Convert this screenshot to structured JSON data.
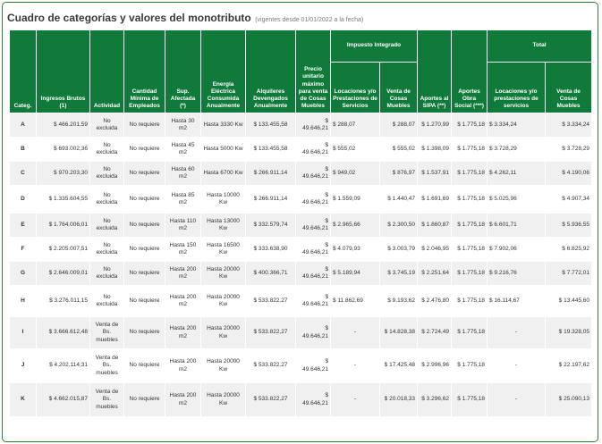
{
  "title": "Cuadro de categorías y valores del monotributo",
  "subtitle": "(vigentes desde 01/01/2022 a la fecha)",
  "headers": {
    "categ": "Categ.",
    "ingresos": "Ingresos Brutos (1)",
    "actividad": "Actividad",
    "empleados": "Cantidad Mínima de Empleados",
    "superficie": "Sup. Afectada (*)",
    "energia": "Energía Eléctrica Consumida Anualmente",
    "alquileres": "Alquileres Devengados Anualmente",
    "precio": "Precio unitario máximo para venta de Cosas Muebles",
    "impuesto_group": "Impuesto Integrado",
    "imp_servicios": "Locaciones y/o Prestaciones de Servicios",
    "imp_muebles": "Venta de Cosas Muebles",
    "sipa": "Aportes al SIPA (**)",
    "obra_social": "Aportes Obra Social (***)",
    "total_group": "Total",
    "tot_servicios": "Locaciones y/o prestaciones de servicios",
    "tot_muebles": "Venta de Cosas Muebles"
  },
  "rows": [
    {
      "cat": "A",
      "ingresos": "$ 466.201,59",
      "actividad": "No excluida",
      "empleados": "No requiere",
      "superficie": "Hasta 30 m2",
      "energia": "Hasta 3330 Kw",
      "alquileres": "$ 133.455,58",
      "precio": "$ 49.646,21",
      "imp_serv": "$ 288,07",
      "imp_mueb": "$ 288,07",
      "sipa": "$ 1.270,99",
      "obra": "$ 1.775,18",
      "tot_serv": "$ 3.334,24",
      "tot_mueb": "$ 3.334,24"
    },
    {
      "cat": "B",
      "ingresos": "$ 693.002,36",
      "actividad": "No excluida",
      "empleados": "No requiere",
      "superficie": "Hasta 45 m2",
      "energia": "Hasta 5000 Kw",
      "alquileres": "$ 133.455,58",
      "precio": "$ 49.646,21",
      "imp_serv": "$ 555,02",
      "imp_mueb": "$ 555,02",
      "sipa": "$ 1.398,09",
      "obra": "$ 1.775,18",
      "tot_serv": "$ 3.728,29",
      "tot_mueb": "$ 3.728,29"
    },
    {
      "cat": "C",
      "ingresos": "$ 970.203,30",
      "actividad": "No excluida",
      "empleados": "No requiere",
      "superficie": "Hasta 60 m2",
      "energia": "Hasta 6700 Kw",
      "alquileres": "$ 266.911,14",
      "precio": "$ 49.646,21",
      "imp_serv": "$ 949,02",
      "imp_mueb": "$ 876,97",
      "sipa": "$ 1.537,91",
      "obra": "$ 1.775,18",
      "tot_serv": "$ 4.262,11",
      "tot_mueb": "$ 4.190,06"
    },
    {
      "cat": "D",
      "ingresos": "$ 1.335.604,55",
      "actividad": "No excluida",
      "empleados": "No requiere",
      "superficie": "Hasta 85 m2",
      "energia": "Hasta 10000 Kw",
      "alquileres": "$ 266.911,14",
      "precio": "$ 49.646,21",
      "imp_serv": "$ 1.559,09",
      "imp_mueb": "$ 1.440,47",
      "sipa": "$ 1.691,69",
      "obra": "$ 1.775,18",
      "tot_serv": "$ 5.025,96",
      "tot_mueb": "$ 4.907,34"
    },
    {
      "cat": "E",
      "ingresos": "$ 1.764.006,01",
      "actividad": "No excluida",
      "empleados": "No requiere",
      "superficie": "Hasta 110 m2",
      "energia": "Hasta 13000 Kw",
      "alquileres": "$ 332.579,74",
      "precio": "$ 49.646,21",
      "imp_serv": "$ 2.965,66",
      "imp_mueb": "$ 2.300,50",
      "sipa": "$ 1.860,87",
      "obra": "$ 1.775,18",
      "tot_serv": "$ 6.601,71",
      "tot_mueb": "$ 5.936,55"
    },
    {
      "cat": "F",
      "ingresos": "$ 2.205.007,51",
      "actividad": "No excluida",
      "empleados": "No requiere",
      "superficie": "Hasta 150 m2",
      "energia": "Hasta 16500 Kw",
      "alquileres": "$ 333.638,90",
      "precio": "$ 49.646,21",
      "imp_serv": "$ 4.079,93",
      "imp_mueb": "$ 3.003,79",
      "sipa": "$ 2.046,95",
      "obra": "$ 1.775,18",
      "tot_serv": "$ 7.902,06",
      "tot_mueb": "$ 6.825,92"
    },
    {
      "cat": "G",
      "ingresos": "$ 2.646.009,01",
      "actividad": "No excluida",
      "empleados": "No requiere",
      "superficie": "Hasta 200 m2",
      "energia": "Hasta 20000 Kw",
      "alquileres": "$ 400.366,71",
      "precio": "$ 49.646,21",
      "imp_serv": "$ 5.189,94",
      "imp_mueb": "$ 3.745,19",
      "sipa": "$ 2.251,64",
      "obra": "$ 1.775,18",
      "tot_serv": "$ 9.216,76",
      "tot_mueb": "$ 7.772,01"
    },
    {
      "cat": "H",
      "ingresos": "$ 3.276.011,15",
      "actividad": "No excluida",
      "empleados": "No requiere",
      "superficie": "Hasta 200 m2",
      "energia": "Hasta 20000 Kw",
      "alquileres": "$ 533.822,27",
      "precio": "$ 49.646,21",
      "imp_serv": "$ 11.862,69",
      "imp_mueb": "$ 9.193,62",
      "sipa": "$ 2.476,80",
      "obra": "$ 1.775,18",
      "tot_serv": "$ 16.114,67",
      "tot_mueb": "$ 13.445,60"
    },
    {
      "cat": "I",
      "ingresos": "$ 3.666.612,48",
      "actividad": "Venta de Bs. muebles",
      "empleados": "No requiere",
      "superficie": "Hasta 200 m2",
      "energia": "Hasta 20000 Kw",
      "alquileres": "$ 533.822,27",
      "precio": "$ 49.646,21",
      "imp_serv": "-",
      "imp_mueb": "$ 14.828,38",
      "sipa": "$ 2.724,49",
      "obra": "$ 1.775,18",
      "tot_serv": "-",
      "tot_mueb": "$ 19.328,05"
    },
    {
      "cat": "J",
      "ingresos": "$ 4.202.114,31",
      "actividad": "Venta de Bs. muebles",
      "empleados": "No requiere",
      "superficie": "Hasta 200 m2",
      "energia": "Hasta 20000 Kw",
      "alquileres": "$ 533.822,27",
      "precio": "$ 49.646,21",
      "imp_serv": "-",
      "imp_mueb": "$ 17.425,48",
      "sipa": "$ 2.996,96",
      "obra": "$ 1.775,18",
      "tot_serv": "-",
      "tot_mueb": "$ 22.197,62"
    },
    {
      "cat": "K",
      "ingresos": "$ 4.662.015,87",
      "actividad": "Venta de Bs. muebles",
      "empleados": "No requiere",
      "superficie": "Hasta 200 m2",
      "energia": "Hasta 20000 Kw",
      "alquileres": "$ 533.822,27",
      "precio": "$ 49.646,21",
      "imp_serv": "-",
      "imp_mueb": "$ 20.018,33",
      "sipa": "$ 3.296,62",
      "obra": "$ 1.775,18",
      "tot_serv": "-",
      "tot_mueb": "$ 25.090,13"
    }
  ]
}
